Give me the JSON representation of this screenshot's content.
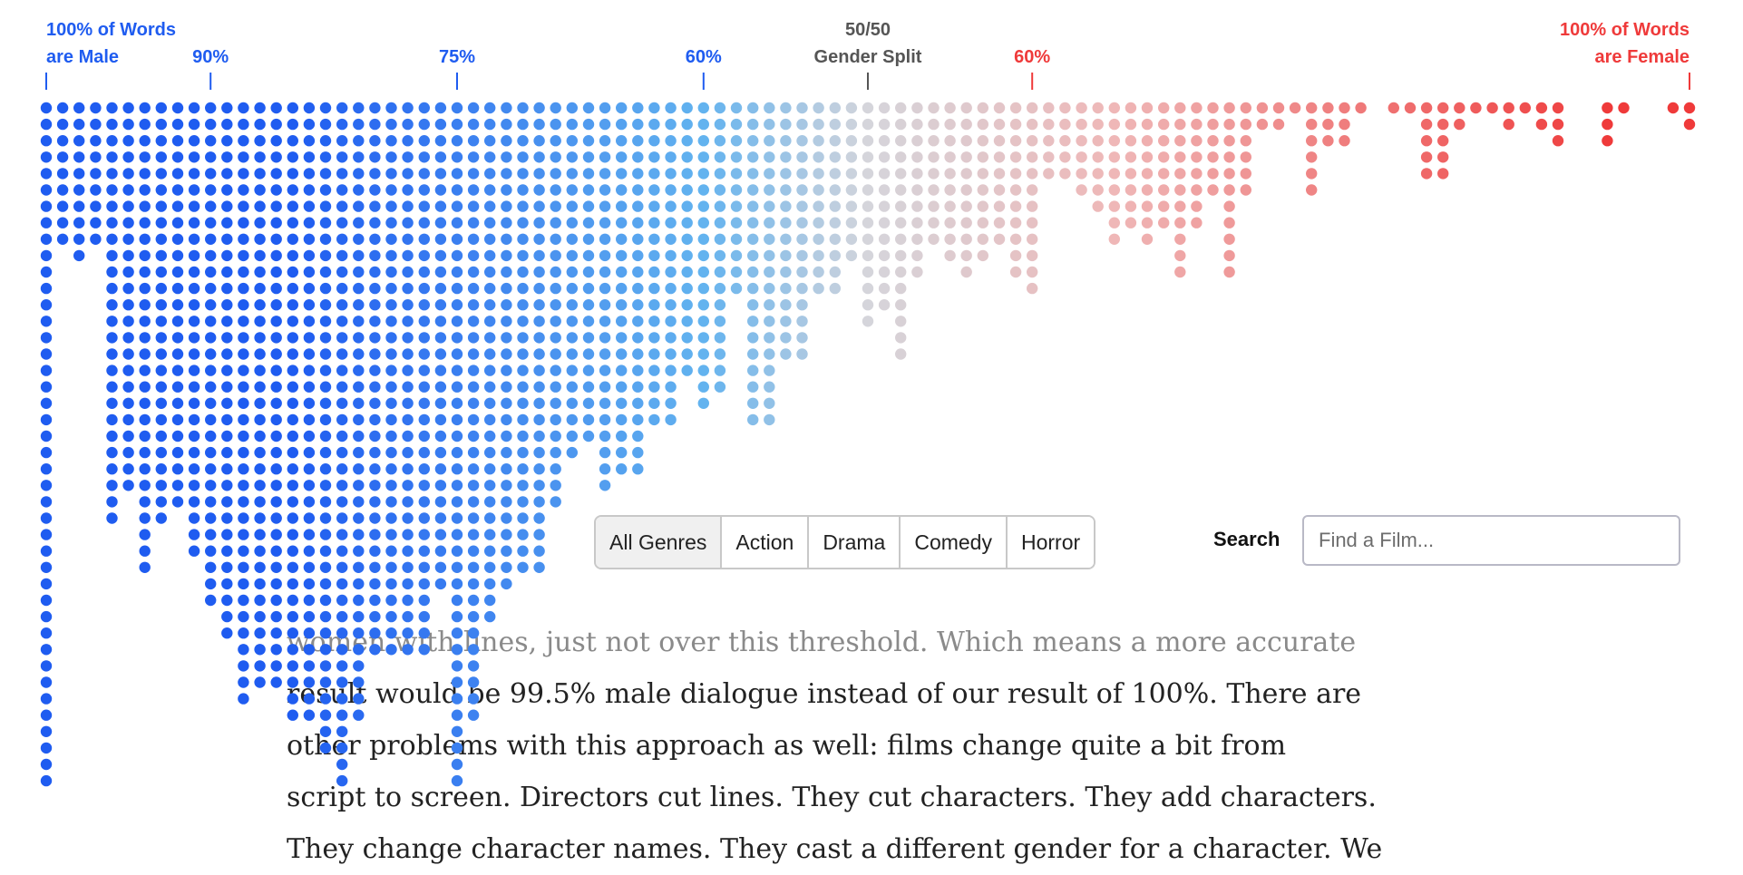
{
  "chart_data": {
    "type": "dot_histogram",
    "x_axis": {
      "meaning": "share of dialogue spoken by male characters",
      "direction": "left = 100% male, right = 100% female",
      "range_male_share_pct": [
        100,
        0
      ]
    },
    "annotations": [
      {
        "male_share_pct": 100,
        "lines": [
          "100% of Words",
          "are Male"
        ],
        "color": "#1f5cf0",
        "align": "start"
      },
      {
        "male_share_pct": 90,
        "lines": [
          "90%"
        ],
        "color": "#1f5cf0",
        "align": "middle"
      },
      {
        "male_share_pct": 75,
        "lines": [
          "75%"
        ],
        "color": "#1f5cf0",
        "align": "middle"
      },
      {
        "male_share_pct": 60,
        "lines": [
          "60%"
        ],
        "color": "#1f5cf0",
        "align": "middle"
      },
      {
        "male_share_pct": 50,
        "lines": [
          "50/50",
          "Gender Split"
        ],
        "color": "#555555",
        "align": "middle"
      },
      {
        "male_share_pct": 40,
        "lines": [
          "60%"
        ],
        "color": "#ef3a3a",
        "align": "middle"
      },
      {
        "male_share_pct": 0,
        "lines": [
          "100% of Words",
          "are Female"
        ],
        "color": "#ef3a3a",
        "align": "end"
      }
    ],
    "columns": [
      {
        "male_share_pct": 100.0,
        "count": 42
      },
      {
        "male_share_pct": 99.0,
        "count": 9
      },
      {
        "male_share_pct": 98.0,
        "count": 10
      },
      {
        "male_share_pct": 97.0,
        "count": 9
      },
      {
        "male_share_pct": 96.0,
        "count": 26
      },
      {
        "male_share_pct": 95.0,
        "count": 24
      },
      {
        "male_share_pct": 94.0,
        "count": 29
      },
      {
        "male_share_pct": 93.0,
        "count": 26
      },
      {
        "male_share_pct": 92.0,
        "count": 25
      },
      {
        "male_share_pct": 91.0,
        "count": 28
      },
      {
        "male_share_pct": 90.0,
        "count": 31
      },
      {
        "male_share_pct": 89.0,
        "count": 33
      },
      {
        "male_share_pct": 88.0,
        "count": 37
      },
      {
        "male_share_pct": 87.0,
        "count": 36
      },
      {
        "male_share_pct": 86.0,
        "count": 36
      },
      {
        "male_share_pct": 85.0,
        "count": 38
      },
      {
        "male_share_pct": 84.0,
        "count": 38
      },
      {
        "male_share_pct": 83.0,
        "count": 40
      },
      {
        "male_share_pct": 82.0,
        "count": 42
      },
      {
        "male_share_pct": 81.0,
        "count": 38
      },
      {
        "male_share_pct": 80.0,
        "count": 34
      },
      {
        "male_share_pct": 79.0,
        "count": 34
      },
      {
        "male_share_pct": 78.0,
        "count": 34
      },
      {
        "male_share_pct": 77.0,
        "count": 34
      },
      {
        "male_share_pct": 76.0,
        "count": 30
      },
      {
        "male_share_pct": 75.0,
        "count": 42
      },
      {
        "male_share_pct": 74.0,
        "count": 38
      },
      {
        "male_share_pct": 73.0,
        "count": 32
      },
      {
        "male_share_pct": 72.0,
        "count": 30
      },
      {
        "male_share_pct": 71.0,
        "count": 29
      },
      {
        "male_share_pct": 70.0,
        "count": 29
      },
      {
        "male_share_pct": 69.0,
        "count": 25
      },
      {
        "male_share_pct": 68.0,
        "count": 22
      },
      {
        "male_share_pct": 67.0,
        "count": 21
      },
      {
        "male_share_pct": 66.0,
        "count": 24
      },
      {
        "male_share_pct": 65.0,
        "count": 23
      },
      {
        "male_share_pct": 64.0,
        "count": 23
      },
      {
        "male_share_pct": 63.0,
        "count": 20
      },
      {
        "male_share_pct": 62.0,
        "count": 20
      },
      {
        "male_share_pct": 61.0,
        "count": 17
      },
      {
        "male_share_pct": 60.0,
        "count": 19
      },
      {
        "male_share_pct": 59.0,
        "count": 18
      },
      {
        "male_share_pct": 58.0,
        "count": 12
      },
      {
        "male_share_pct": 57.0,
        "count": 20
      },
      {
        "male_share_pct": 56.0,
        "count": 20
      },
      {
        "male_share_pct": 55.0,
        "count": 16
      },
      {
        "male_share_pct": 54.0,
        "count": 16
      },
      {
        "male_share_pct": 53.0,
        "count": 12
      },
      {
        "male_share_pct": 52.0,
        "count": 12
      },
      {
        "male_share_pct": 51.0,
        "count": 10
      },
      {
        "male_share_pct": 50.0,
        "count": 14
      },
      {
        "male_share_pct": 49.0,
        "count": 13
      },
      {
        "male_share_pct": 48.0,
        "count": 16
      },
      {
        "male_share_pct": 47.0,
        "count": 11
      },
      {
        "male_share_pct": 46.0,
        "count": 9
      },
      {
        "male_share_pct": 45.0,
        "count": 10
      },
      {
        "male_share_pct": 44.0,
        "count": 11
      },
      {
        "male_share_pct": 43.0,
        "count": 10
      },
      {
        "male_share_pct": 42.0,
        "count": 9
      },
      {
        "male_share_pct": 41.0,
        "count": 11
      },
      {
        "male_share_pct": 40.0,
        "count": 12
      },
      {
        "male_share_pct": 39.0,
        "count": 5
      },
      {
        "male_share_pct": 38.0,
        "count": 5
      },
      {
        "male_share_pct": 37.0,
        "count": 6
      },
      {
        "male_share_pct": 36.0,
        "count": 7
      },
      {
        "male_share_pct": 35.0,
        "count": 9
      },
      {
        "male_share_pct": 34.0,
        "count": 8
      },
      {
        "male_share_pct": 33.0,
        "count": 9
      },
      {
        "male_share_pct": 32.0,
        "count": 8
      },
      {
        "male_share_pct": 31.0,
        "count": 11
      },
      {
        "male_share_pct": 30.0,
        "count": 8
      },
      {
        "male_share_pct": 29.0,
        "count": 6
      },
      {
        "male_share_pct": 28.0,
        "count": 11
      },
      {
        "male_share_pct": 27.0,
        "count": 6
      },
      {
        "male_share_pct": 26.0,
        "count": 2
      },
      {
        "male_share_pct": 25.0,
        "count": 2
      },
      {
        "male_share_pct": 24.0,
        "count": 1
      },
      {
        "male_share_pct": 23.0,
        "count": 6
      },
      {
        "male_share_pct": 22.0,
        "count": 3
      },
      {
        "male_share_pct": 21.0,
        "count": 3
      },
      {
        "male_share_pct": 20.0,
        "count": 1
      },
      {
        "male_share_pct": 19.0,
        "count": 0
      },
      {
        "male_share_pct": 18.0,
        "count": 1
      },
      {
        "male_share_pct": 17.0,
        "count": 1
      },
      {
        "male_share_pct": 16.0,
        "count": 5
      },
      {
        "male_share_pct": 15.0,
        "count": 5
      },
      {
        "male_share_pct": 14.0,
        "count": 2
      },
      {
        "male_share_pct": 13.0,
        "count": 1
      },
      {
        "male_share_pct": 12.0,
        "count": 1
      },
      {
        "male_share_pct": 11.0,
        "count": 2
      },
      {
        "male_share_pct": 10.0,
        "count": 1
      },
      {
        "male_share_pct": 9.0,
        "count": 2
      },
      {
        "male_share_pct": 8.0,
        "count": 3
      },
      {
        "male_share_pct": 7.0,
        "count": 0
      },
      {
        "male_share_pct": 6.0,
        "count": 0
      },
      {
        "male_share_pct": 5.0,
        "count": 3
      },
      {
        "male_share_pct": 4.0,
        "count": 1
      },
      {
        "male_share_pct": 3.0,
        "count": 0
      },
      {
        "male_share_pct": 2.0,
        "count": 0
      },
      {
        "male_share_pct": 1.0,
        "count": 1
      },
      {
        "male_share_pct": 0.0,
        "count": 2
      }
    ],
    "colors": {
      "male_end": "#1f5cf0",
      "male_light": "#63b3ef",
      "neutral": "#d5d5db",
      "female_light": "#efb7b7",
      "female_end": "#ef3a3a"
    }
  },
  "controls": {
    "genre_buttons": [
      {
        "label": "All Genres",
        "active": true
      },
      {
        "label": "Action",
        "active": false
      },
      {
        "label": "Drama",
        "active": false
      },
      {
        "label": "Comedy",
        "active": false
      },
      {
        "label": "Horror",
        "active": false
      }
    ],
    "search_label": "Search",
    "search_placeholder": "Find a Film..."
  },
  "article": {
    "lines": [
      "women with lines, just not over this threshold. Which means a more accurate",
      "result would be 99.5% male dialogue instead of our result of 100%. There are",
      "other problems with this approach as well: films change quite a bit from",
      "script to screen. Directors cut lines. They cut characters. They add characters.",
      "They change character names. They cast a different gender for a character. We"
    ]
  }
}
